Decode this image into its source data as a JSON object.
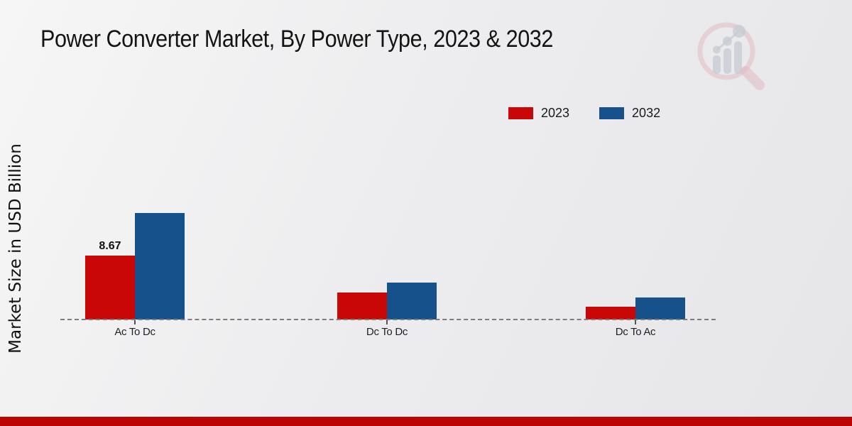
{
  "header": {
    "title": "Power Converter Market, By Power Type, 2023 & 2032"
  },
  "y_axis": {
    "label": "Market Size in USD Billion"
  },
  "legend": {
    "items": [
      {
        "label": "2023",
        "color": "#c90707"
      },
      {
        "label": "2032",
        "color": "#17518c"
      }
    ]
  },
  "chart_data": {
    "type": "bar",
    "title": "Power Converter Market, By Power Type, 2023 & 2032",
    "categories": [
      "Ac To Dc",
      "Dc To Dc",
      "Dc To Ac"
    ],
    "series": [
      {
        "name": "2023",
        "color": "#c90707",
        "values": [
          8.67,
          3.65,
          1.75
        ]
      },
      {
        "name": "2032",
        "color": "#17518c",
        "values": [
          14.45,
          5.0,
          3.0
        ]
      }
    ],
    "value_labels": [
      {
        "series": 0,
        "category": 0,
        "text": "8.67"
      }
    ],
    "xlabel": "",
    "ylabel": "Market Size in USD Billion",
    "ylim": [
      0,
      16
    ],
    "grid": false,
    "y_axis_ticks_visible": false,
    "legend_position": "top-right",
    "baseline_style": "dashed"
  },
  "watermark": {
    "icon": "magnifier-bar-chart-logo",
    "ring_color": "#e0bcc2",
    "bars_color": "#c5c9d2"
  },
  "footer": {
    "band_color": "#bc0404"
  }
}
